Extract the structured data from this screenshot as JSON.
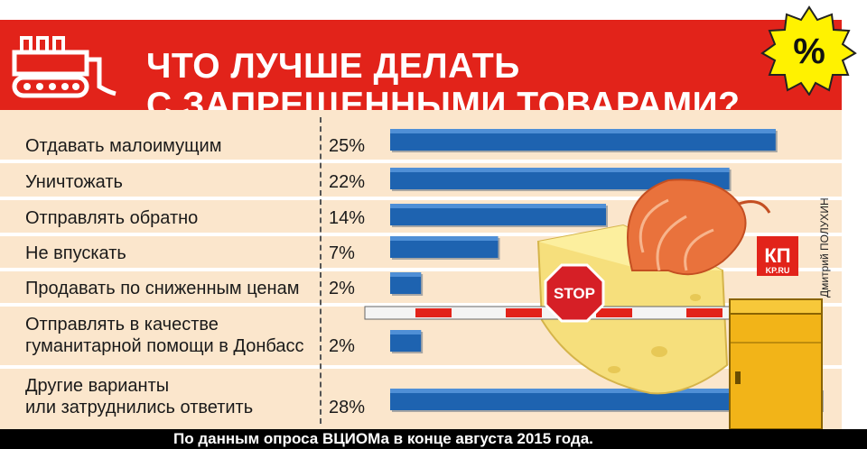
{
  "header": {
    "title_line1": "ЧТО ЛУЧШЕ ДЕЛАТЬ",
    "title_line2": "С ЗАПРЕЩЕННЫМИ ТОВАРАМИ?",
    "badge": "%"
  },
  "chart_data": {
    "type": "bar",
    "orientation": "horizontal",
    "title": "ЧТО ЛУЧШЕ ДЕЛАТЬ С ЗАПРЕЩЕННЫМИ ТОВАРАМИ?",
    "categories": [
      "Отдавать малоимущим",
      "Уничтожать",
      "Отправлять обратно",
      "Не впускать",
      "Продавать по сниженным ценам",
      "Отправлять в качестве\nгуманитарной помощи в Донбасс",
      "Другие варианты\nили затруднились ответить"
    ],
    "values": [
      25,
      22,
      14,
      7,
      2,
      2,
      28
    ],
    "value_labels": [
      "25%",
      "22%",
      "14%",
      "7%",
      "2%",
      "2%",
      "28%"
    ],
    "unit": "%",
    "xlim": [
      0,
      28
    ],
    "bar_color": "#1e63b0",
    "grid": false,
    "legend": "none"
  },
  "illustration": {
    "stop_sign": "STOP",
    "logo_line1": "КП",
    "logo_line2": "KP.RU"
  },
  "credit": "Дмитрий ПОЛУХИН",
  "footer": "По данным опроса ВЦИОМа в конце августа 2015 года.",
  "colors": {
    "header_red": "#e2231a",
    "row_background": "#fbe6cc",
    "bar_blue": "#1e63b0",
    "barrier_yellow": "#f2b418"
  }
}
